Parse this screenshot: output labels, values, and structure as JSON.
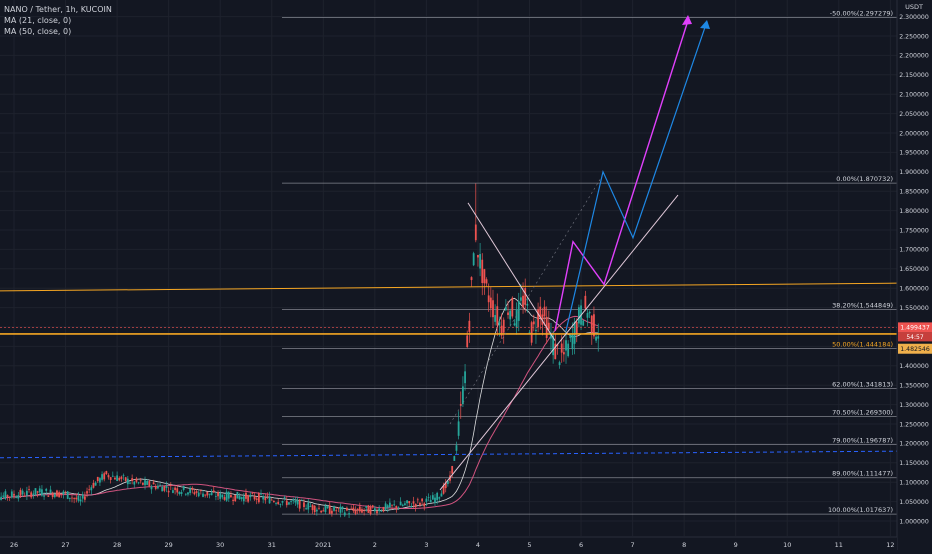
{
  "legend": {
    "title": "NANO / Tether, 1h, KUCOIN",
    "ma21": "MA (21, close, 0)",
    "ma50": "MA (50, close, 0)"
  },
  "colors": {
    "background": "#131722",
    "axis_text": "#d1d4dc",
    "candle_up": "#26a69a",
    "candle_down": "#ef5350",
    "ma21": "#ffffff",
    "ma50": "#e65a89",
    "fib": "#9598a1",
    "resistance": "#f5a623",
    "dashed_support": "#2962ff",
    "projection_magenta": "#e040fb",
    "projection_blue": "#1e88e5",
    "price_tag": "#ef5350",
    "ask_tag": "#f0b04b"
  },
  "chart_data": {
    "type": "candlestick",
    "title": "NANO / Tether, 1h, KUCOIN",
    "y_unit": "USDT",
    "ylim": [
      0.97,
      2.33
    ],
    "y_ticks": [
      "1.000000",
      "1.050000",
      "1.100000",
      "1.150000",
      "1.200000",
      "1.250000",
      "1.300000",
      "1.350000",
      "1.400000",
      "1.450000",
      "1.500000",
      "1.550000",
      "1.600000",
      "1.650000",
      "1.700000",
      "1.750000",
      "1.800000",
      "1.850000",
      "1.900000",
      "1.950000",
      "2.000000",
      "2.050000",
      "2.100000",
      "2.150000",
      "2.200000",
      "2.250000",
      "2.300000"
    ],
    "x_ticks": [
      "26",
      "27",
      "28",
      "29",
      "30",
      "31",
      "2021",
      "2",
      "3",
      "4",
      "5",
      "6",
      "7",
      "8",
      "9",
      "10",
      "11",
      "12"
    ],
    "current_price": "1.499437",
    "ask_price": "1.482546",
    "countdown": "54:57",
    "fib_levels": [
      {
        "label": "-50.00%(2.297279)",
        "value": 2.297279
      },
      {
        "label": "0.00%(1.870732)",
        "value": 1.870732
      },
      {
        "label": "38.20%(1.544849)",
        "value": 1.544849
      },
      {
        "label": "50.00%(1.444184)",
        "value": 1.444184
      },
      {
        "label": "62.00%(1.341813)",
        "value": 1.341813
      },
      {
        "label": "70.50%(1.269300)",
        "value": 1.2693
      },
      {
        "label": "79.00%(1.196787)",
        "value": 1.196787
      },
      {
        "label": "89.00%(1.111477)",
        "value": 1.111477
      },
      {
        "label": "100.00%(1.017637)",
        "value": 1.017637
      }
    ],
    "ohlc_anchors": [
      {
        "x": "Dec 25 12:00",
        "o": 1.06,
        "h": 1.1,
        "l": 1.03,
        "c": 1.07
      },
      {
        "x": "Dec 27 12:00",
        "o": 1.08,
        "h": 1.16,
        "l": 1.05,
        "c": 1.12
      },
      {
        "x": "Dec 28 12:00",
        "o": 1.1,
        "h": 1.14,
        "l": 1.06,
        "c": 1.08
      },
      {
        "x": "Dec 30 00:00",
        "o": 1.07,
        "h": 1.1,
        "l": 1.03,
        "c": 1.05
      },
      {
        "x": "Dec 31 12:00",
        "o": 1.05,
        "h": 1.08,
        "l": 1.01,
        "c": 1.03
      },
      {
        "x": "Jan 2 12:00",
        "o": 1.03,
        "h": 1.08,
        "l": 1.01,
        "c": 1.04
      },
      {
        "x": "Jan 3 00:00",
        "o": 1.04,
        "h": 1.07,
        "l": 1.02,
        "c": 1.06
      },
      {
        "x": "Jan 3 12:00",
        "o": 1.2,
        "h": 1.4,
        "l": 1.18,
        "c": 1.38
      },
      {
        "x": "Jan 3 18:00",
        "o": 1.6,
        "h": 1.87,
        "l": 1.5,
        "c": 1.7
      },
      {
        "x": "Jan 4 00:00",
        "o": 1.62,
        "h": 1.68,
        "l": 1.45,
        "c": 1.55
      },
      {
        "x": "Jan 4 12:00",
        "o": 1.48,
        "h": 1.6,
        "l": 1.35,
        "c": 1.52
      },
      {
        "x": "Jan 5 00:00",
        "o": 1.55,
        "h": 1.58,
        "l": 1.44,
        "c": 1.47
      },
      {
        "x": "Jan 5 12:00",
        "o": 1.46,
        "h": 1.5,
        "l": 1.4,
        "c": 1.44
      },
      {
        "x": "Jan 6 00:00",
        "o": 1.5,
        "h": 1.58,
        "l": 1.47,
        "c": 1.5
      }
    ]
  }
}
